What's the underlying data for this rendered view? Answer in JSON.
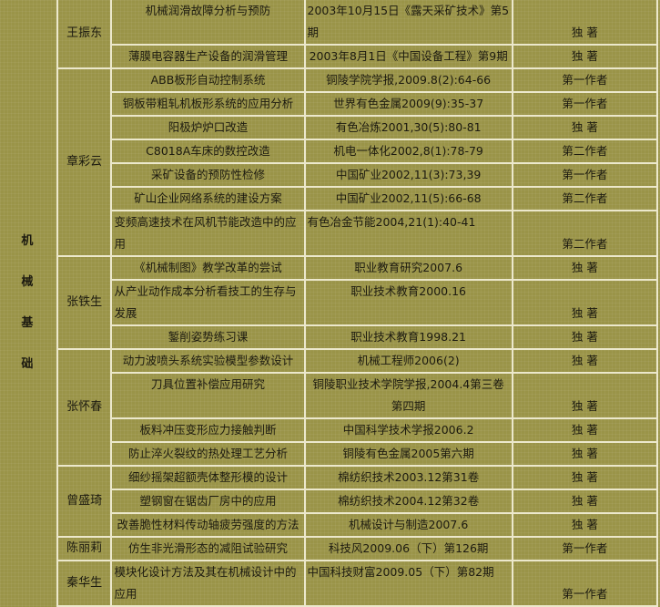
{
  "category": [
    "机",
    "械",
    "基",
    "础"
  ],
  "authors": [
    {
      "name": "王振东",
      "papers": [
        {
          "title": "机械润滑故障分析与预防",
          "source": "2003年10月15日《露天采矿技术》第5期",
          "role": "独 著"
        },
        {
          "title": "薄膜电容器生产设备的润滑管理",
          "source": "2003年8月1日《中国设备工程》第9期",
          "role": "独 著"
        }
      ]
    },
    {
      "name": "章彩云",
      "papers": [
        {
          "title": "ABB板形自动控制系统",
          "source": "铜陵学院学报,2009.8(2):64-66",
          "role": "第一作者"
        },
        {
          "title": "铜板带粗轧机板形系统的应用分析",
          "source": "世界有色金属2009(9):35-37",
          "role": "第一作者"
        },
        {
          "title": "阳极炉炉口改造",
          "source": "有色冶炼2001,30(5):80-81",
          "role": "独 著"
        },
        {
          "title": "C8018A车床的数控改造",
          "source": "机电一体化2002,8(1):78-79",
          "role": "第二作者"
        },
        {
          "title": "采矿设备的预防性检修",
          "source": "中国矿业2002,11(3):73,39",
          "role": "第一作者"
        },
        {
          "title": "矿山企业网络系统的建设方案",
          "source": "中国矿业2002,11(5):66-68",
          "role": "第二作者"
        },
        {
          "title": "变频高速技术在风机节能改造中的应用",
          "source": "有色冶金节能2004,21(1):40-41",
          "role": "第二作者"
        }
      ]
    },
    {
      "name": "张铁生",
      "papers": [
        {
          "title": "《机械制图》教学改革的尝试",
          "source": "职业教育研究2007.6",
          "role": "独 著"
        },
        {
          "title": "从产业动作成本分析看技工的生存与发展",
          "source": "职业技术教育2000.16",
          "role": "独 著"
        },
        {
          "title": "錾削姿势练习课",
          "source": "职业技术教育1998.21",
          "role": "独 著"
        }
      ]
    },
    {
      "name": "张怀春",
      "papers": [
        {
          "title": "动力波喷头系统实验模型参数设计",
          "source": "机械工程师2006(2)",
          "role": "独 著"
        },
        {
          "title": "刀具位置补偿应用研究",
          "source": "铜陵职业技术学院学报,2004.4第三卷第四期",
          "role": "独 著"
        },
        {
          "title": "板料冲压变形应力接触判断",
          "source": "中国科学技术学报2006.2",
          "role": "独 著"
        },
        {
          "title": "防止淬火裂纹的热处理工艺分析",
          "source": "铜陵有色金属2005第六期",
          "role": "独 著"
        }
      ]
    },
    {
      "name": "曾盛琦",
      "papers": [
        {
          "title": "细纱摇架超额壳体整形模的设计",
          "source": "棉纺织技术2003.12第31卷",
          "role": "独 著"
        },
        {
          "title": "塑钢窗在锯齿厂房中的应用",
          "source": "棉纺织技术2004.12第32卷",
          "role": "独 著"
        },
        {
          "title": "改善脆性材料传动轴疲劳强度的方法",
          "source": "机械设计与制造2007.6",
          "role": "独 著"
        }
      ]
    },
    {
      "name": "陈丽莉",
      "papers": [
        {
          "title": "仿生非光滑形态的减阻试验研究",
          "source": "科技风2009.06（下）第126期",
          "role": "第一作者"
        }
      ]
    },
    {
      "name": "秦华生",
      "papers": [
        {
          "title": "模块化设计方法及其在机械设计中的应用",
          "source": "中国科技财富2009.05（下）第82期",
          "role": "第一作者"
        }
      ]
    }
  ]
}
